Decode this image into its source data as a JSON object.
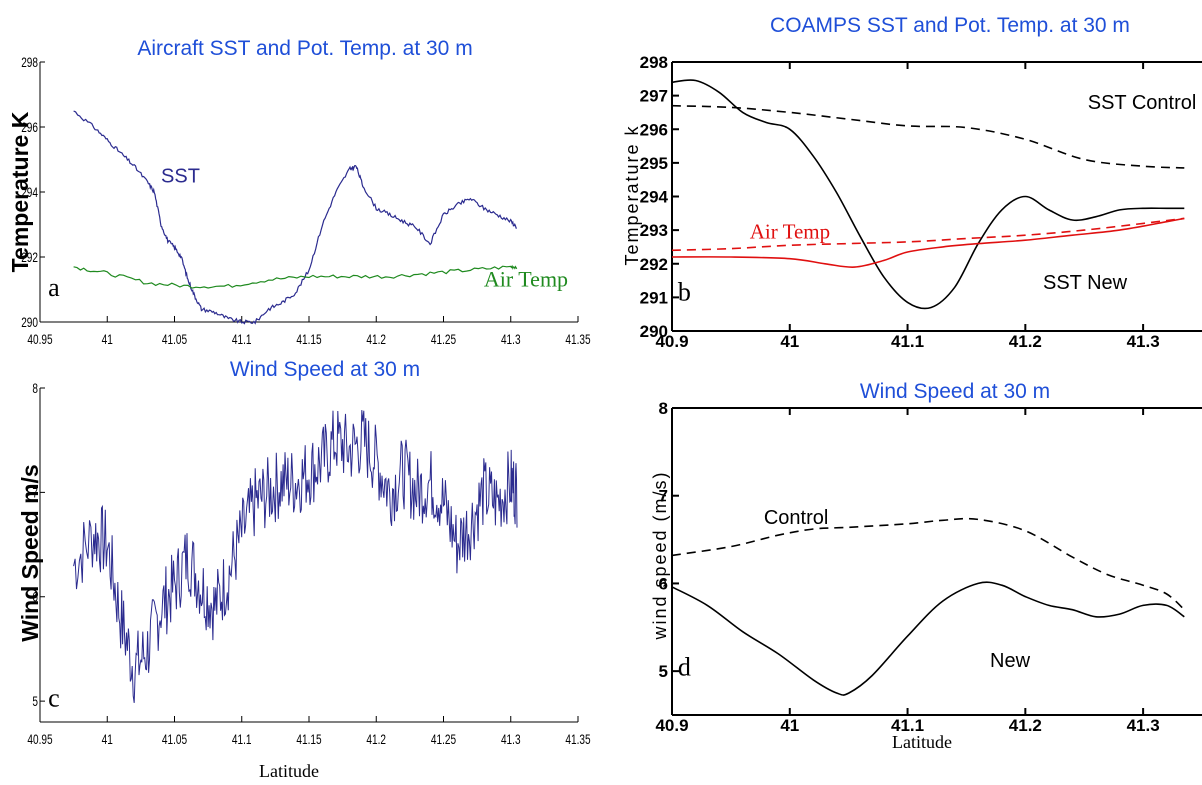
{
  "colors": {
    "title": "#1f4fd8",
    "series_blue": "#2b2b8f",
    "series_green": "#1f8a1f",
    "series_red": "#e01010",
    "black": "#000000"
  },
  "chart_data": [
    {
      "panel": "a",
      "type": "line",
      "title": "Aircraft SST and Pot. Temp. at 30 m",
      "ylabel": "Temperature K",
      "xlabel": "",
      "xlim": [
        40.95,
        41.35
      ],
      "ylim": [
        290,
        298
      ],
      "xticks": [
        "40.95",
        "41",
        "41.05",
        "41.1",
        "41.15",
        "41.2",
        "41.25",
        "41.3",
        "41.35"
      ],
      "yticks": [
        "290",
        "292",
        "294",
        "296",
        "298"
      ],
      "grid": false,
      "series": [
        {
          "name": "SST",
          "style": "solid",
          "color": "#2b2b8f",
          "x": [
            40.975,
            40.99,
            41.0,
            41.01,
            41.02,
            41.03,
            41.035,
            41.04,
            41.045,
            41.05,
            41.055,
            41.06,
            41.065,
            41.07,
            41.08,
            41.09,
            41.1,
            41.11,
            41.12,
            41.13,
            41.14,
            41.15,
            41.16,
            41.17,
            41.18,
            41.185,
            41.19,
            41.2,
            41.21,
            41.22,
            41.23,
            41.24,
            41.25,
            41.26,
            41.27,
            41.28,
            41.29,
            41.3,
            41.305
          ],
          "y": [
            296.5,
            296.0,
            295.6,
            295.2,
            294.8,
            294.3,
            294.0,
            293.0,
            292.5,
            292.3,
            292.0,
            291.3,
            290.8,
            290.4,
            290.3,
            290.1,
            290.0,
            290.0,
            290.4,
            290.6,
            290.9,
            291.6,
            293.0,
            294.0,
            294.7,
            294.8,
            294.2,
            293.5,
            293.3,
            293.1,
            292.9,
            292.4,
            293.3,
            293.6,
            293.8,
            293.5,
            293.3,
            293.1,
            292.9
          ]
        },
        {
          "name": "Air Temp",
          "style": "solid",
          "color": "#1f8a1f",
          "x": [
            40.975,
            41.0,
            41.03,
            41.06,
            41.09,
            41.12,
            41.15,
            41.18,
            41.21,
            41.24,
            41.27,
            41.3,
            41.305
          ],
          "y": [
            291.7,
            291.5,
            291.2,
            291.1,
            291.1,
            291.3,
            291.4,
            291.4,
            291.4,
            291.5,
            291.6,
            291.7,
            291.7
          ]
        }
      ],
      "annotations": [
        {
          "text": "SST",
          "x": 41.04,
          "y": 294.3
        },
        {
          "text": "Air Temp",
          "x": 41.28,
          "y": 291.1
        },
        {
          "text": "a",
          "x": 40.956,
          "y": 290.8
        }
      ]
    },
    {
      "panel": "b",
      "type": "line",
      "title": "COAMPS SST and Pot. Temp. at 30 m",
      "ylabel": "Temperature k",
      "xlabel": "",
      "xlim": [
        40.9,
        41.35
      ],
      "ylim": [
        290,
        298
      ],
      "xticks": [
        "40.9",
        "41",
        "41.1",
        "41.2",
        "41.3"
      ],
      "yticks": [
        "290",
        "291",
        "292",
        "293",
        "294",
        "295",
        "296",
        "297",
        "298"
      ],
      "grid": false,
      "series": [
        {
          "name": "SST New",
          "style": "solid",
          "color": "#000000",
          "x": [
            40.9,
            40.92,
            40.94,
            40.96,
            40.98,
            41.0,
            41.02,
            41.04,
            41.06,
            41.08,
            41.1,
            41.12,
            41.14,
            41.16,
            41.18,
            41.2,
            41.22,
            41.24,
            41.26,
            41.28,
            41.3,
            41.32,
            41.335
          ],
          "y": [
            297.4,
            297.45,
            297.1,
            296.5,
            296.2,
            296.0,
            295.2,
            294.1,
            292.8,
            291.6,
            290.85,
            290.7,
            291.3,
            292.6,
            293.6,
            294.0,
            293.6,
            293.3,
            293.4,
            293.6,
            293.65,
            293.65,
            293.65
          ]
        },
        {
          "name": "SST Control",
          "style": "dashed",
          "color": "#000000",
          "x": [
            40.9,
            40.95,
            41.0,
            41.05,
            41.1,
            41.15,
            41.2,
            41.25,
            41.3,
            41.335
          ],
          "y": [
            296.7,
            296.65,
            296.5,
            296.3,
            296.1,
            296.05,
            295.7,
            295.1,
            294.9,
            294.85
          ]
        },
        {
          "name": "Air Temp",
          "style": "solid",
          "color": "#e01010",
          "x": [
            40.9,
            40.95,
            41.0,
            41.03,
            41.055,
            41.08,
            41.1,
            41.13,
            41.16,
            41.2,
            41.24,
            41.28,
            41.32,
            41.335
          ],
          "y": [
            292.2,
            292.2,
            292.15,
            292.0,
            291.9,
            292.1,
            292.35,
            292.5,
            292.6,
            292.7,
            292.85,
            293.0,
            293.25,
            293.35
          ]
        },
        {
          "name": "Air Temp Control",
          "style": "dashed",
          "color": "#e01010",
          "x": [
            40.9,
            40.95,
            41.0,
            41.05,
            41.1,
            41.15,
            41.2,
            41.25,
            41.3,
            41.335
          ],
          "y": [
            292.4,
            292.45,
            292.55,
            292.6,
            292.65,
            292.75,
            292.85,
            293.0,
            293.2,
            293.35
          ]
        }
      ],
      "annotations": [
        {
          "text": "SST Control",
          "x": 41.253,
          "y": 296.6
        },
        {
          "text": "Air Temp",
          "x": 40.966,
          "y": 292.75
        },
        {
          "text": "SST New",
          "x": 41.215,
          "y": 291.25
        },
        {
          "text": "b",
          "x": 40.905,
          "y": 290.9
        }
      ]
    },
    {
      "panel": "c",
      "type": "line",
      "title": "Wind Speed at 30 m",
      "ylabel": "Wind Speed m/s",
      "xlabel": "Latitude",
      "xlim": [
        40.95,
        41.35
      ],
      "ylim": [
        4.8,
        8.0
      ],
      "xticks": [
        "40.95",
        "41",
        "41.05",
        "41.1",
        "41.15",
        "41.2",
        "41.25",
        "41.3",
        "41.35"
      ],
      "yticks": [
        "5",
        "6",
        "7",
        "8"
      ],
      "grid": false,
      "series": [
        {
          "name": "",
          "style": "solid",
          "color": "#2b2b8f",
          "x": [
            40.975,
            40.99,
            41.0,
            41.01,
            41.02,
            41.03,
            41.04,
            41.05,
            41.06,
            41.07,
            41.08,
            41.09,
            41.1,
            41.11,
            41.12,
            41.13,
            41.14,
            41.15,
            41.16,
            41.17,
            41.18,
            41.19,
            41.2,
            41.21,
            41.22,
            41.23,
            41.24,
            41.25,
            41.26,
            41.27,
            41.28,
            41.29,
            41.3,
            41.305
          ],
          "y": [
            6.3,
            6.6,
            6.5,
            5.8,
            5.3,
            5.5,
            5.9,
            6.1,
            6.4,
            6.1,
            5.9,
            6.2,
            6.6,
            6.9,
            7.0,
            7.1,
            7.1,
            7.2,
            7.3,
            7.5,
            7.4,
            7.5,
            7.3,
            7.0,
            7.2,
            7.0,
            7.1,
            6.9,
            6.5,
            6.7,
            7.0,
            6.9,
            7.1,
            7.0
          ],
          "noise": 0.35
        }
      ],
      "annotations": [
        {
          "text": "c",
          "x": 40.956,
          "y": 4.95
        }
      ]
    },
    {
      "panel": "d",
      "type": "line",
      "title": "Wind Speed at 30 m",
      "ylabel": "wind speed (m/s)",
      "xlabel": "Latitude",
      "xlim": [
        40.9,
        41.35
      ],
      "ylim": [
        4.5,
        8.0
      ],
      "xticks": [
        "40.9",
        "41",
        "41.1",
        "41.2",
        "41.3"
      ],
      "yticks": [
        "5",
        "6",
        "7",
        "8"
      ],
      "grid": false,
      "series": [
        {
          "name": "New",
          "style": "solid",
          "color": "#000000",
          "x": [
            40.9,
            40.93,
            40.96,
            40.99,
            41.02,
            41.04,
            41.05,
            41.07,
            41.1,
            41.13,
            41.16,
            41.18,
            41.2,
            41.22,
            41.24,
            41.26,
            41.28,
            41.3,
            41.32,
            41.335
          ],
          "y": [
            5.96,
            5.75,
            5.45,
            5.2,
            4.9,
            4.75,
            4.75,
            4.95,
            5.4,
            5.8,
            6.0,
            5.98,
            5.85,
            5.75,
            5.7,
            5.62,
            5.65,
            5.75,
            5.75,
            5.62
          ]
        },
        {
          "name": "Control",
          "style": "dashed",
          "color": "#000000",
          "x": [
            40.9,
            40.95,
            40.99,
            41.02,
            41.05,
            41.1,
            41.13,
            41.16,
            41.2,
            41.24,
            41.27,
            41.3,
            41.32,
            41.335
          ],
          "y": [
            6.32,
            6.42,
            6.55,
            6.62,
            6.64,
            6.68,
            6.72,
            6.73,
            6.6,
            6.3,
            6.1,
            5.98,
            5.88,
            5.7
          ]
        }
      ],
      "annotations": [
        {
          "text": "Control",
          "x": 40.978,
          "y": 6.68
        },
        {
          "text": "New",
          "x": 41.17,
          "y": 5.05
        },
        {
          "text": "d",
          "x": 40.905,
          "y": 4.95
        }
      ]
    }
  ]
}
